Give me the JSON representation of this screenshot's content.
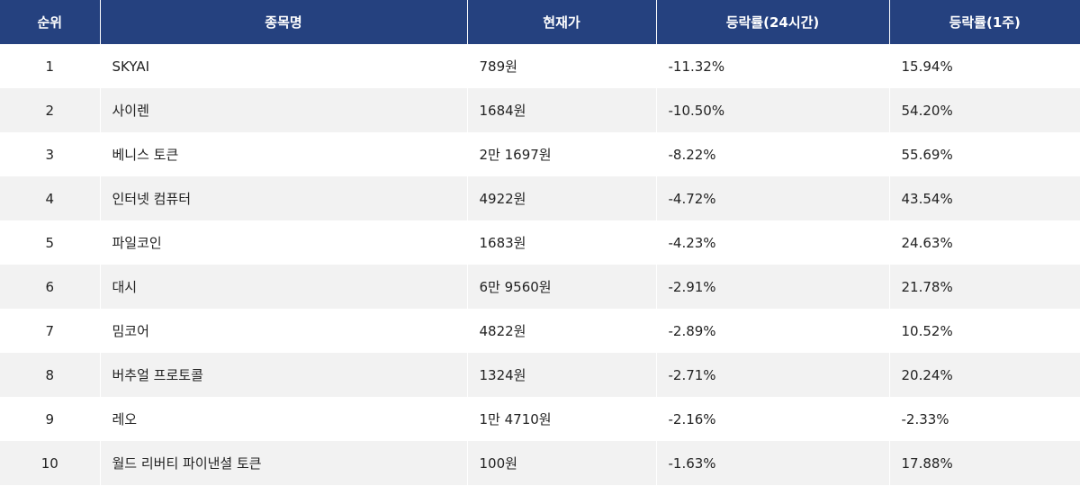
{
  "table": {
    "headers": [
      "순위",
      "종목명",
      "현재가",
      "등락률(24시간)",
      "등락률(1주)"
    ],
    "rows": [
      [
        "1",
        "SKYAI",
        "789원",
        "-11.32%",
        "15.94%"
      ],
      [
        "2",
        "사이렌",
        "1684원",
        "-10.50%",
        "54.20%"
      ],
      [
        "3",
        "베니스 토큰",
        "2만 1697원",
        "-8.22%",
        "55.69%"
      ],
      [
        "4",
        "인터넷 컴퓨터",
        "4922원",
        "-4.72%",
        "43.54%"
      ],
      [
        "5",
        "파일코인",
        "1683원",
        "-4.23%",
        "24.63%"
      ],
      [
        "6",
        "대시",
        "6만 9560원",
        "-2.91%",
        "21.78%"
      ],
      [
        "7",
        "밈코어",
        "4822원",
        "-2.89%",
        "10.52%"
      ],
      [
        "8",
        "버추얼 프로토콜",
        "1324원",
        "-2.71%",
        "20.24%"
      ],
      [
        "9",
        "레오",
        "1만 4710원",
        "-2.16%",
        "-2.33%"
      ],
      [
        "10",
        "월드 리버티 파이낸셜 토큰",
        "100원",
        "-1.63%",
        "17.88%"
      ]
    ]
  },
  "colors": {
    "header_bg": "#25417f",
    "header_text": "#ffffff",
    "row_alt_bg": "#f2f2f2",
    "body_text": "#222222"
  }
}
